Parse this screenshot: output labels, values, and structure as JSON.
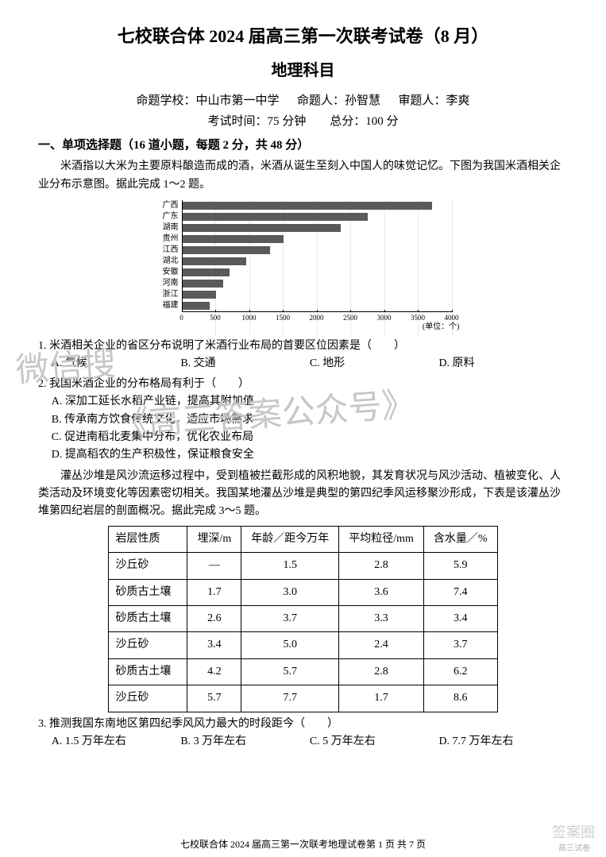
{
  "header": {
    "main_title": "七校联合体 2024 届高三第一次联考试卷（8 月）",
    "subject_title": "地理科目",
    "meta_line1_label_school": "命题学校：",
    "meta_line1_school": "中山市第一中学",
    "meta_line1_label_author": "命题人：",
    "meta_line1_author": "孙智慧",
    "meta_line1_label_reviewer": "审题人：",
    "meta_line1_reviewer": "李爽",
    "meta_line2_time_label": "考试时间：",
    "meta_line2_time": "75 分钟",
    "meta_line2_total_label": "总分：",
    "meta_line2_total": "100 分"
  },
  "section1": {
    "heading": "一、单项选择题（16 道小题，每题 2 分，共 48 分）",
    "intro": "米酒指以大米为主要原料酿造而成的酒，米酒从诞生至刻入中国人的味觉记忆。下图为我国米酒相关企业分布示意图。据此完成 1～2 题。"
  },
  "chart": {
    "type": "bar-horizontal",
    "x_label_unit": "(单位：个)",
    "xlim": [
      0,
      4000
    ],
    "xtick_step": 500,
    "xticks": [
      "0",
      "500",
      "1000",
      "1500",
      "2000",
      "2500",
      "3000",
      "3500",
      "4000"
    ],
    "bar_color": "#5a5a5a",
    "background_color": "#ffffff",
    "label_fontsize": 10,
    "tick_fontsize": 9,
    "items": [
      {
        "label": "广西",
        "value": 3700
      },
      {
        "label": "广东",
        "value": 2750
      },
      {
        "label": "湖南",
        "value": 2350
      },
      {
        "label": "贵州",
        "value": 1500
      },
      {
        "label": "江西",
        "value": 1300
      },
      {
        "label": "湖北",
        "value": 950
      },
      {
        "label": "安徽",
        "value": 700
      },
      {
        "label": "河南",
        "value": 600
      },
      {
        "label": "浙江",
        "value": 500
      },
      {
        "label": "福建",
        "value": 400
      }
    ]
  },
  "q1": {
    "stem": "1. 米酒相关企业的省区分布说明了米酒行业布局的首要区位因素是（　　）",
    "A": "A. 气候",
    "B": "B. 交通",
    "C": "C. 地形",
    "D": "D. 原料"
  },
  "q2": {
    "stem": "2. 我国米酒企业的分布格局有利于（　　）",
    "A": "A. 深加工延长水稻产业链，提高其附加值",
    "B": "B. 传承南方饮食传统文化，适应市场需求",
    "C": "C. 促进南稻北麦集中分布，优化农业布局",
    "D": "D. 提高稻农的生产积极性，保证粮食安全"
  },
  "para2": {
    "text": "灌丛沙堆是风沙流运移过程中，受到植被拦截形成的风积地貌，其发育状况与风沙活动、植被变化、人类活动及环境变化等因素密切相关。我国某地灌丛沙堆是典型的第四纪季风运移聚沙形成，下表是该灌丛沙堆第四纪岩层的剖面概况。据此完成 3～5 题。"
  },
  "table": {
    "columns": [
      "岩层性质",
      "埋深/m",
      "年龄／距今万年",
      "平均粒径/mm",
      "含水量／%"
    ],
    "rows": [
      [
        "沙丘砂",
        "—",
        "1.5",
        "2.8",
        "5.9"
      ],
      [
        "砂质古土壤",
        "1.7",
        "3.0",
        "3.6",
        "7.4"
      ],
      [
        "砂质古土壤",
        "2.6",
        "3.7",
        "3.3",
        "3.4"
      ],
      [
        "沙丘砂",
        "3.4",
        "5.0",
        "2.4",
        "3.7"
      ],
      [
        "砂质古土壤",
        "4.2",
        "5.7",
        "2.8",
        "6.2"
      ],
      [
        "沙丘砂",
        "5.7",
        "7.7",
        "1.7",
        "8.6"
      ]
    ],
    "border_color": "#000000",
    "cell_fontsize": 14
  },
  "q3": {
    "stem": "3. 推测我国东南地区第四纪季风风力最大的时段距今（　　）",
    "A": "A. 1.5 万年左右",
    "B": "B. 3 万年左右",
    "C": "C. 5 万年左右",
    "D": "D. 7.7 万年左右"
  },
  "footer": {
    "text": "七校联合体 2024 届高三第一次联考地理试卷第 1 页  共 7 页"
  },
  "watermark": {
    "line1": "微信搜",
    "line2": "《高三答案公众号》"
  },
  "corner": {
    "brand": "签案圈",
    "site": "高三试卷"
  }
}
